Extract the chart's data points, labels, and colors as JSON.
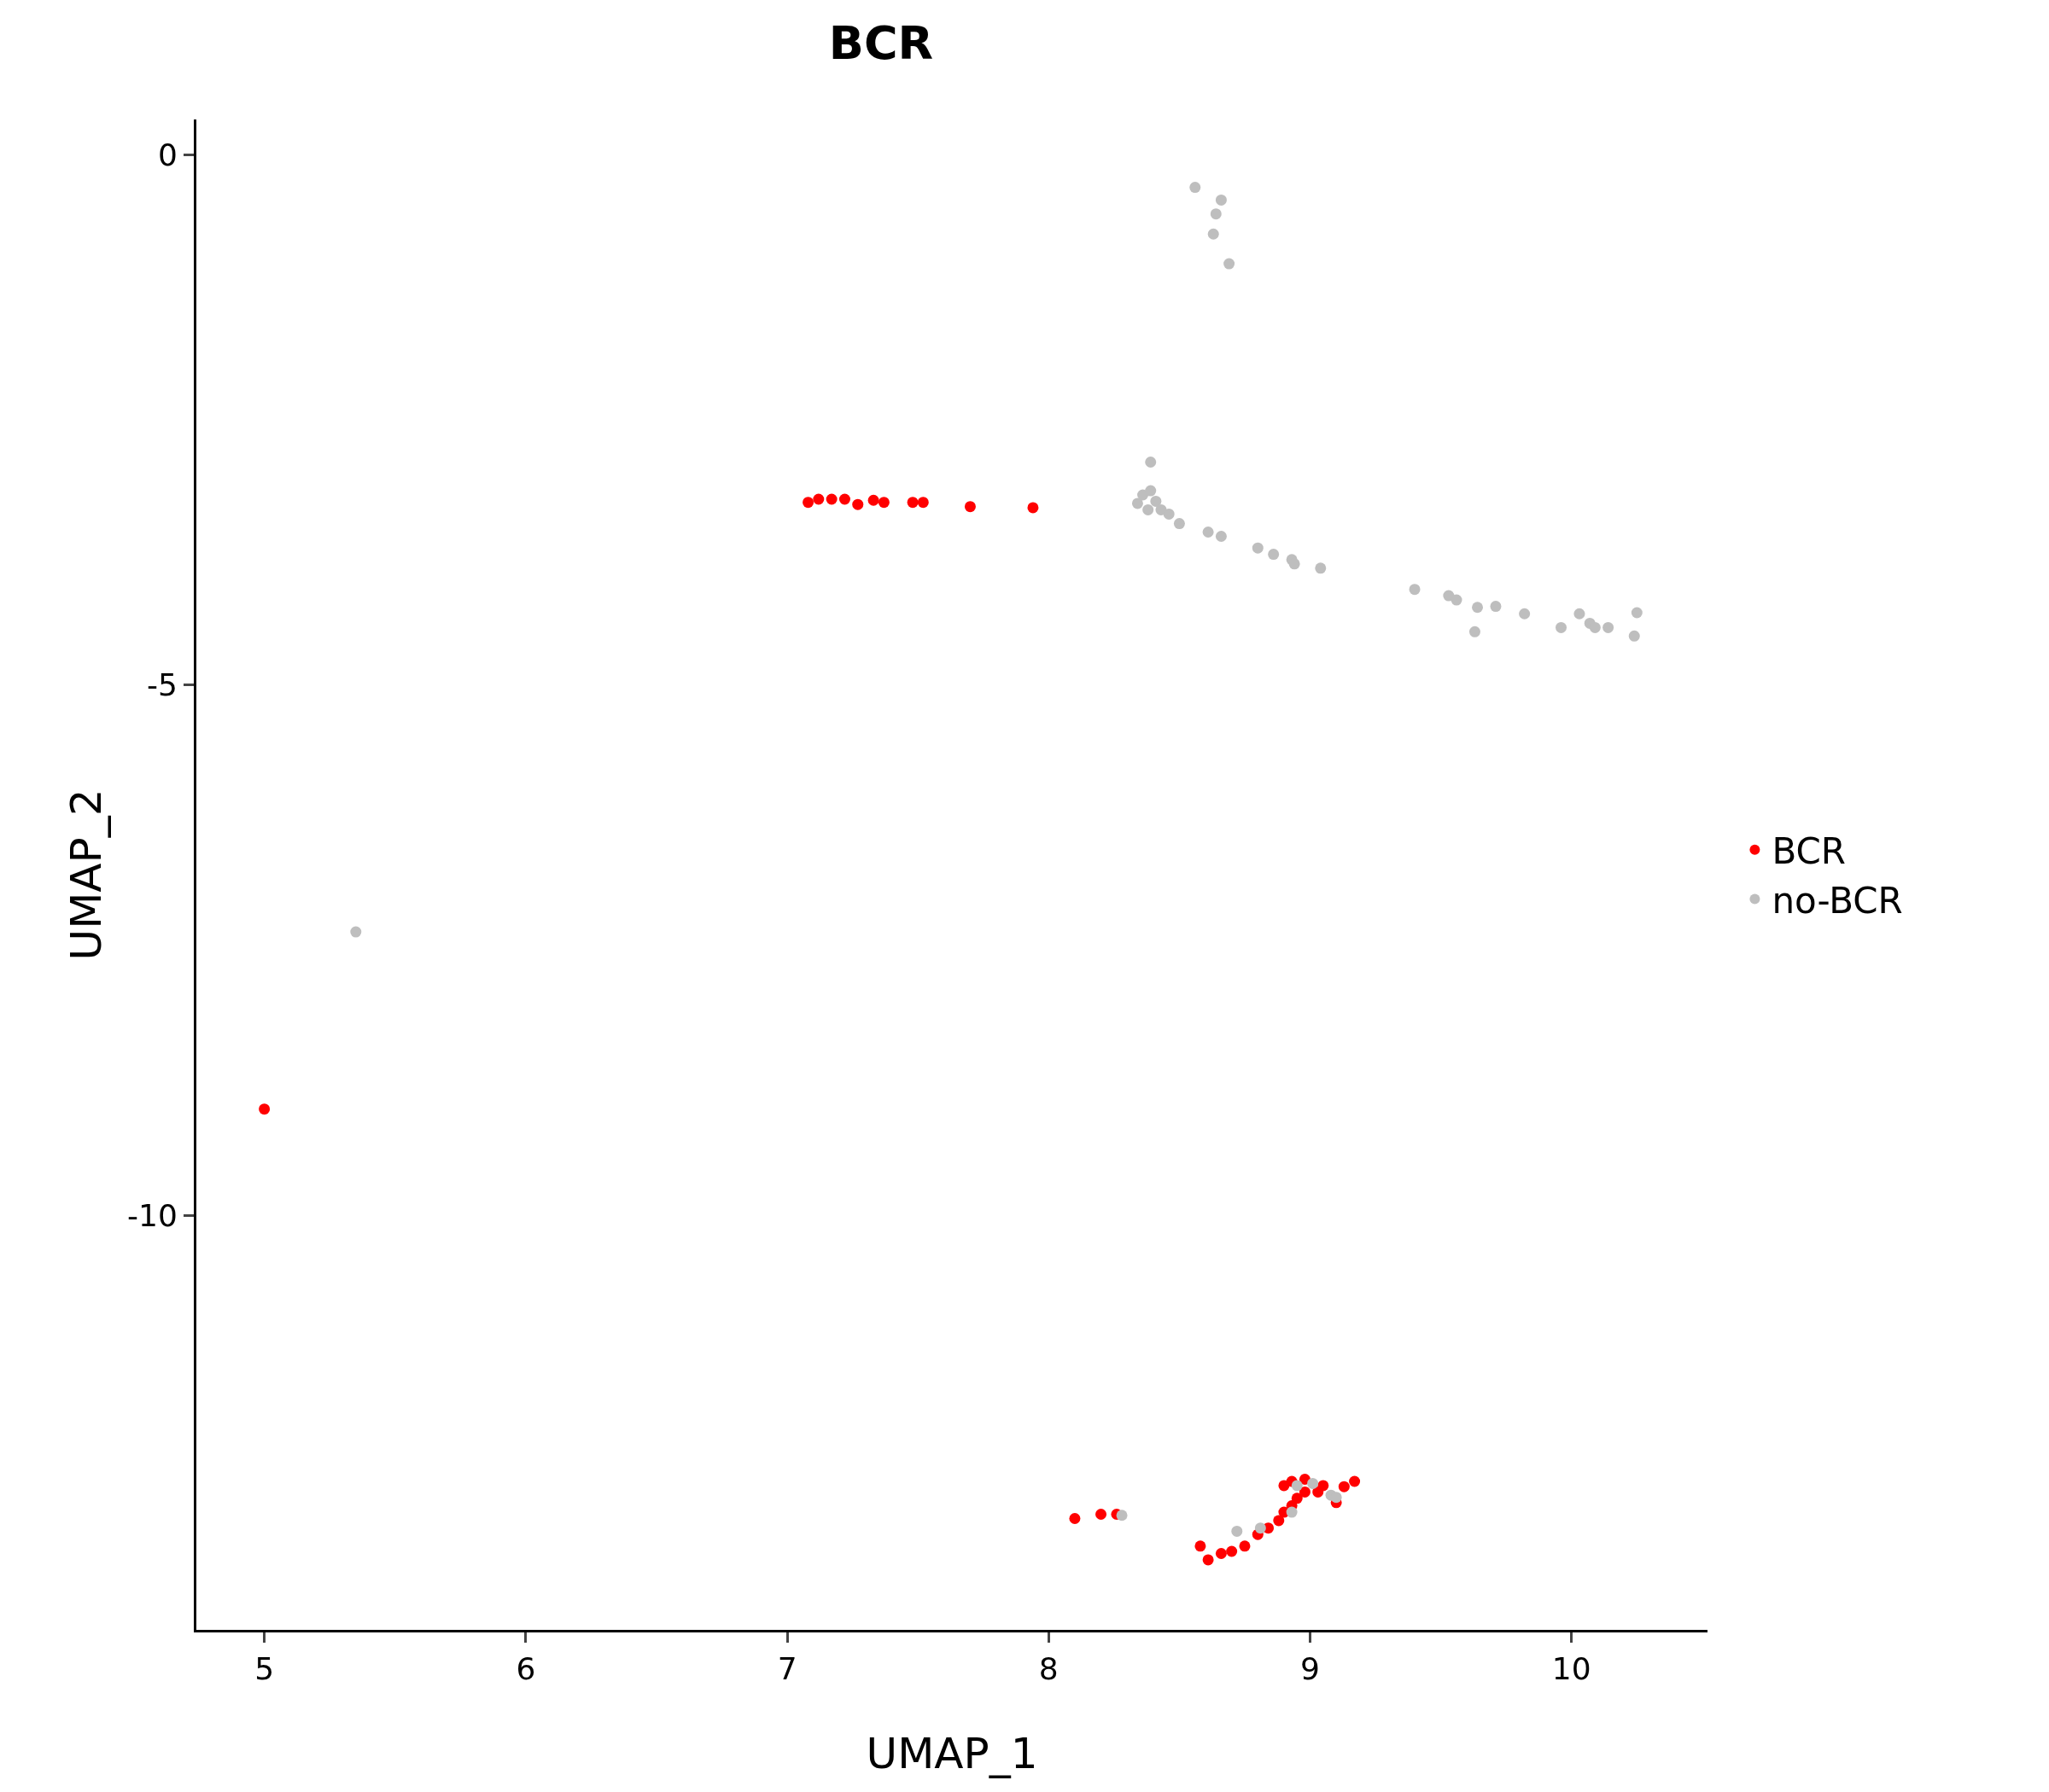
{
  "chart_data": {
    "type": "scatter",
    "title": "BCR",
    "xlabel": "UMAP_1",
    "ylabel": "UMAP_2",
    "xlim": [
      4.74,
      10.52
    ],
    "ylim": [
      -13.91,
      0.33
    ],
    "xticks": [
      5,
      6,
      7,
      8,
      9,
      10
    ],
    "yticks": [
      0,
      -5,
      -10
    ],
    "grid": false,
    "legend": "right",
    "marker": "circle",
    "series": [
      {
        "name": "BCR",
        "color": "#ff0000",
        "x": [
          7.08,
          7.12,
          7.17,
          7.22,
          7.27,
          7.33,
          7.37,
          7.48,
          7.52,
          7.7,
          7.94,
          5.0,
          8.1,
          8.2,
          8.26,
          8.58,
          8.61,
          8.66,
          8.7,
          8.75,
          8.8,
          8.84,
          8.88,
          8.9,
          8.93,
          8.95,
          8.98,
          8.9,
          8.93,
          8.98,
          9.03,
          9.1,
          9.13,
          9.17,
          9.05
        ],
        "values": [
          -3.28,
          -3.25,
          -3.25,
          -3.25,
          -3.3,
          -3.26,
          -3.28,
          -3.28,
          -3.28,
          -3.32,
          -3.33,
          -9.0,
          -12.86,
          -12.82,
          -12.82,
          -13.12,
          -13.25,
          -13.19,
          -13.17,
          -13.12,
          -13.01,
          -12.95,
          -12.88,
          -12.8,
          -12.74,
          -12.67,
          -12.61,
          -12.55,
          -12.51,
          -12.49,
          -12.61,
          -12.71,
          -12.56,
          -12.51,
          -12.55
        ]
      },
      {
        "name": "no-BCR",
        "color": "#bebebe",
        "x": [
          8.56,
          8.66,
          8.64,
          8.63,
          8.69,
          8.39,
          8.34,
          8.36,
          8.39,
          8.41,
          8.43,
          8.38,
          8.46,
          8.5,
          8.61,
          8.66,
          8.8,
          8.86,
          8.93,
          8.94,
          9.04,
          9.4,
          9.53,
          9.56,
          9.64,
          9.63,
          9.71,
          9.82,
          9.96,
          10.03,
          10.07,
          10.09,
          10.14,
          10.25,
          10.24,
          5.35,
          8.28,
          8.72,
          8.81,
          8.95,
          9.01,
          9.08,
          9.1,
          8.93
        ],
        "values": [
          -0.31,
          -0.43,
          -0.56,
          -0.75,
          -1.03,
          -2.9,
          -3.29,
          -3.21,
          -3.17,
          -3.27,
          -3.35,
          -3.35,
          -3.39,
          -3.48,
          -3.56,
          -3.6,
          -3.71,
          -3.77,
          -3.82,
          -3.86,
          -3.9,
          -4.1,
          -4.16,
          -4.2,
          -4.27,
          -4.5,
          -4.26,
          -4.33,
          -4.46,
          -4.33,
          -4.42,
          -4.46,
          -4.46,
          -4.32,
          -4.54,
          -7.33,
          -12.83,
          -12.98,
          -12.95,
          -12.55,
          -12.53,
          -12.64,
          -12.66,
          -12.8
        ]
      }
    ]
  }
}
